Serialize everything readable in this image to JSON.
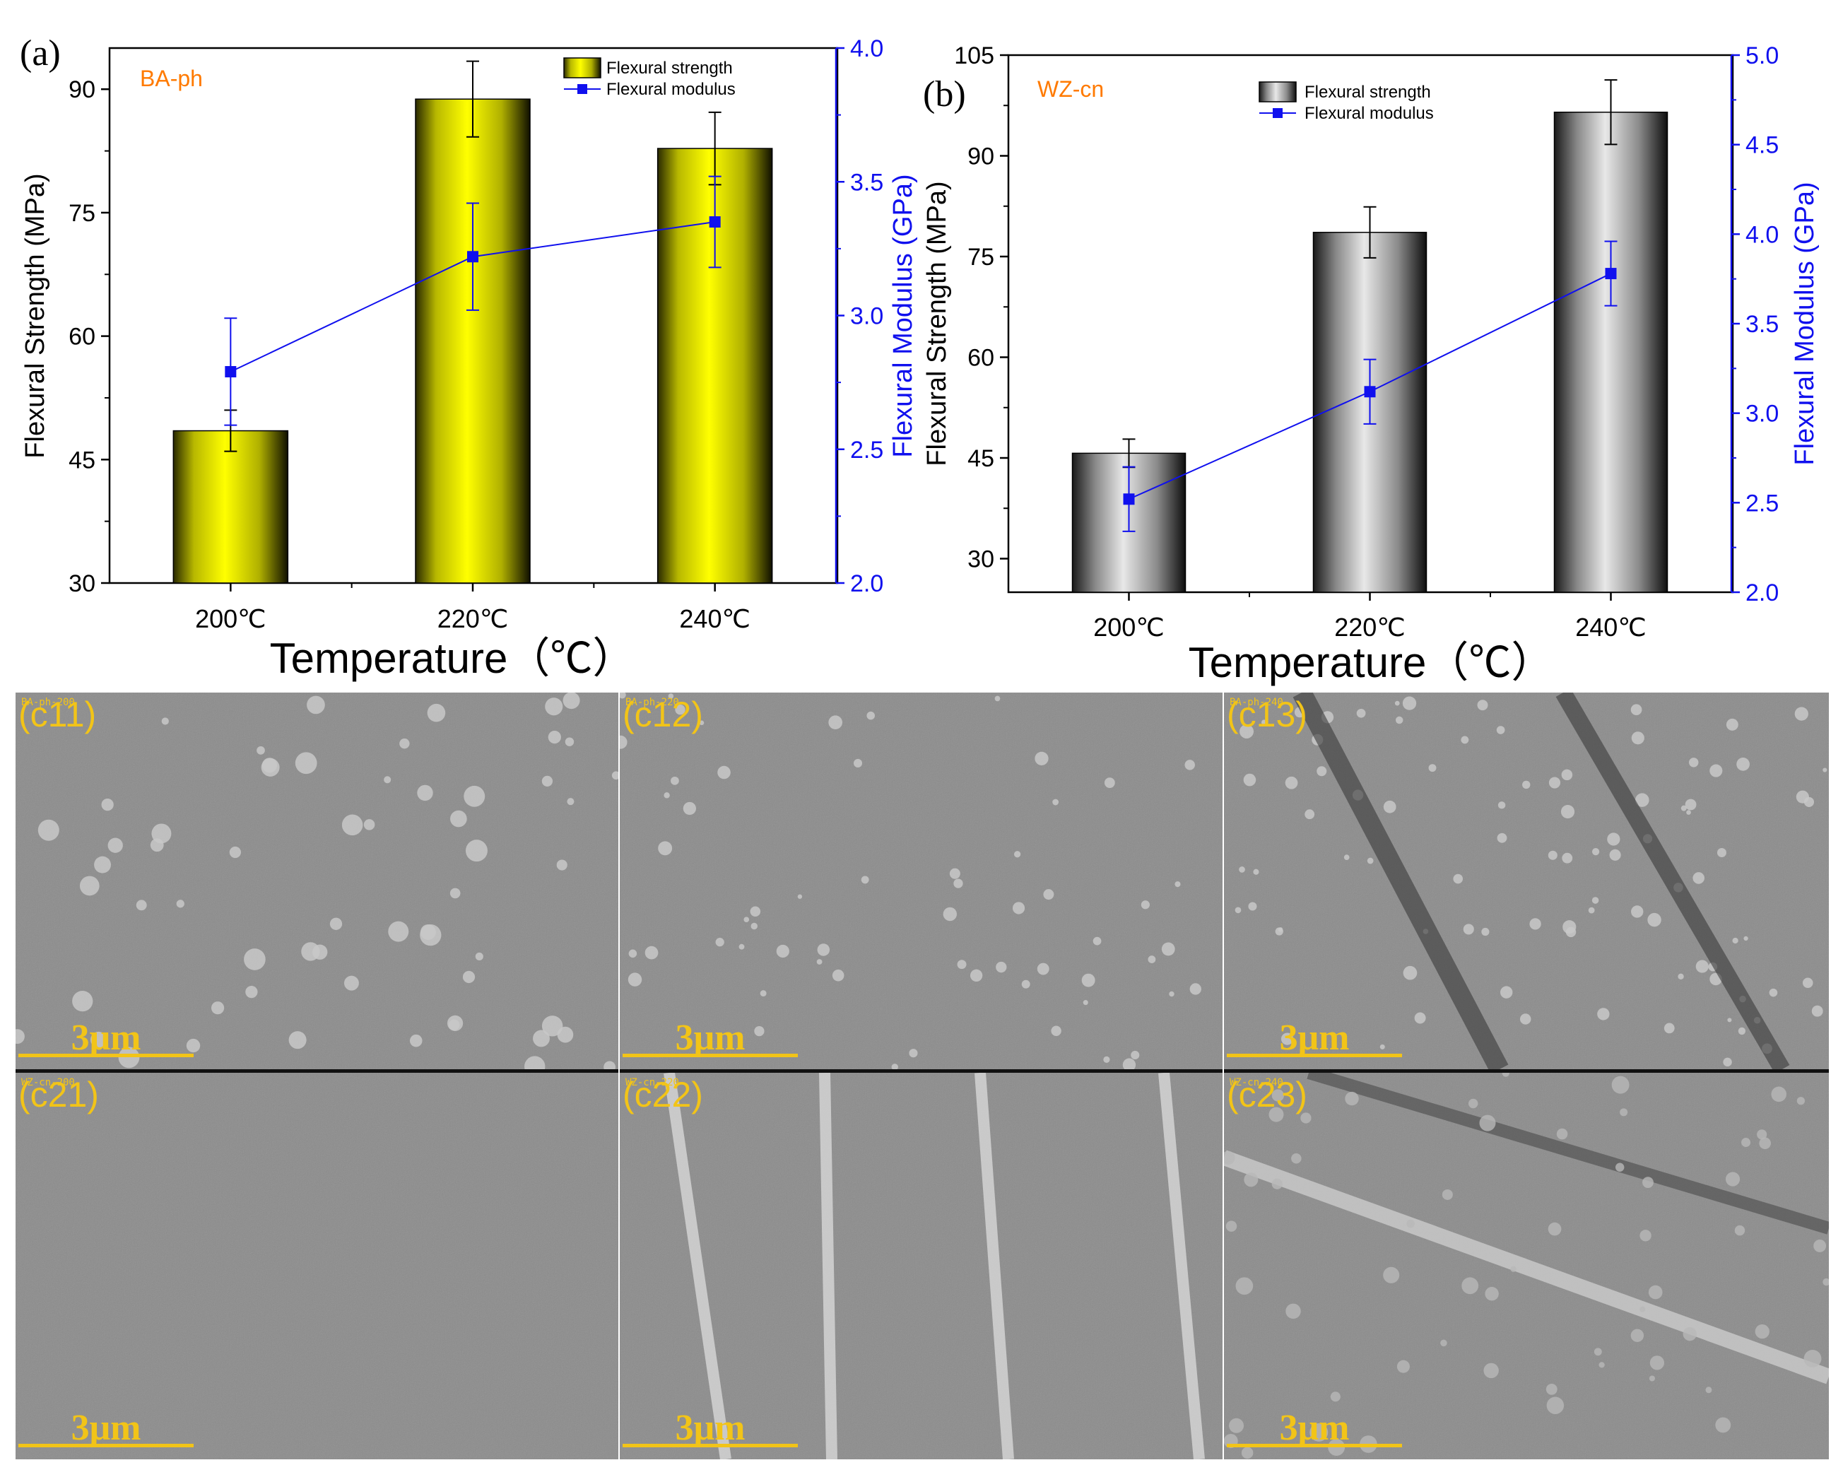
{
  "chart_data": [
    {
      "panel": "(a)",
      "type": "bar",
      "sample": "BA-ph",
      "categories": [
        "200℃",
        "220℃",
        "240℃"
      ],
      "xlabel": "Temperature（℃）",
      "ylabel": "Flexural Strength (MPa)",
      "y2label": "Flexural Modulus (GPa)",
      "ylim": [
        30,
        95
      ],
      "y2lim": [
        2.0,
        4.0
      ],
      "yticks": [
        30,
        45,
        60,
        75,
        90
      ],
      "y2ticks": [
        2.0,
        2.5,
        3.0,
        3.5,
        4.0
      ],
      "series": [
        {
          "name": "Flexural strength",
          "axis": "left",
          "kind": "bar",
          "values": [
            48.5,
            88.8,
            82.8
          ],
          "errors": [
            2.5,
            4.6,
            4.4
          ]
        },
        {
          "name": "Flexural modulus",
          "axis": "right",
          "kind": "line",
          "values": [
            2.79,
            3.22,
            3.35
          ],
          "errors": [
            0.2,
            0.2,
            0.17
          ]
        }
      ],
      "bar_color": "#f0f000",
      "line_color": "#1010ee",
      "legend_position": "top-right"
    },
    {
      "panel": "(b)",
      "type": "bar",
      "sample": "WZ-cn",
      "categories": [
        "200℃",
        "220℃",
        "240℃"
      ],
      "xlabel": "Temperature（℃）",
      "ylabel": "Flexural Strength (MPa)",
      "y2label": "Flexural Modulus (GPa)",
      "ylim": [
        25,
        105
      ],
      "y2lim": [
        2.0,
        5.0
      ],
      "yticks": [
        30,
        45,
        60,
        75,
        90,
        105
      ],
      "y2ticks": [
        2.0,
        2.5,
        3.0,
        3.5,
        4.0,
        4.5,
        5.0
      ],
      "series": [
        {
          "name": "Flexural strength",
          "axis": "left",
          "kind": "bar",
          "values": [
            45.7,
            78.6,
            96.5
          ],
          "errors": [
            2.1,
            3.8,
            4.8
          ]
        },
        {
          "name": "Flexural modulus",
          "axis": "right",
          "kind": "line",
          "values": [
            2.52,
            3.12,
            3.78
          ],
          "errors": [
            0.18,
            0.18,
            0.18
          ]
        }
      ],
      "bar_color": "#c8c8c8",
      "line_color": "#1010ee",
      "legend_position": "top-center"
    }
  ],
  "sem_panels": [
    {
      "label": "(c11)",
      "tiny": "BA-ph-200",
      "scale": "3μm"
    },
    {
      "label": "(c12)",
      "tiny": "BA-ph-220",
      "scale": "3μm"
    },
    {
      "label": "(c13)",
      "tiny": "BA-ph-240",
      "scale": "3μm"
    },
    {
      "label": "(c21)",
      "tiny": "WZ-cn-200",
      "scale": "3μm"
    },
    {
      "label": "(c22)",
      "tiny": "WZ-cn-220",
      "scale": "3μm"
    },
    {
      "label": "(c23)",
      "tiny": "WZ-cn-240",
      "scale": "3μm"
    }
  ],
  "colors": {
    "sem_gray": "#8c8c8c",
    "scale_bar": "#f2c418",
    "modulus_axis": "#1010ee"
  }
}
